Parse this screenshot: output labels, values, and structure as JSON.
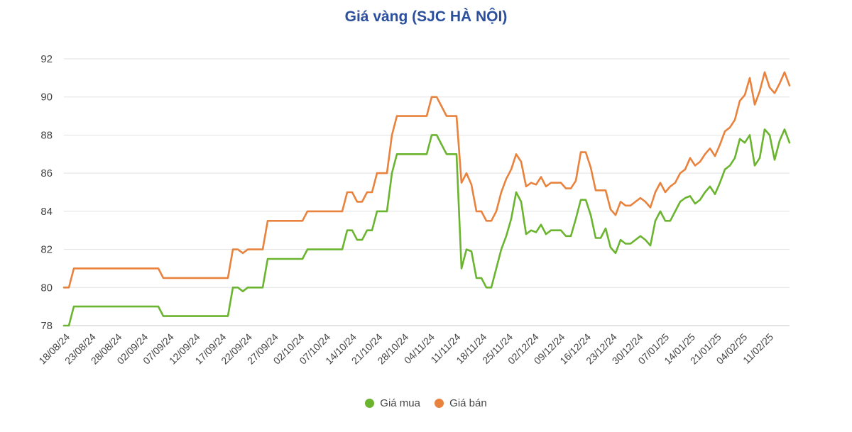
{
  "chart_data": {
    "type": "line",
    "title": "Giá vàng (SJC HÀ NỘI)",
    "xlabel": "",
    "ylabel": "",
    "ylim": [
      78,
      92
    ],
    "y_ticks": [
      "78",
      "80",
      "82",
      "84",
      "86",
      "88",
      "90",
      "92"
    ],
    "x_tick_labels": [
      "18/08/24",
      "23/08/24",
      "28/08/24",
      "02/09/24",
      "07/09/24",
      "12/09/24",
      "17/09/24",
      "22/09/24",
      "27/09/24",
      "02/10/24",
      "07/10/24",
      "14/10/24",
      "21/10/24",
      "28/10/24",
      "04/11/24",
      "11/11/24",
      "18/11/24",
      "25/11/24",
      "02/12/24",
      "09/12/24",
      "16/12/24",
      "23/12/24",
      "30/12/24",
      "07/01/25",
      "14/01/25",
      "21/01/25",
      "04/02/25",
      "11/02/25"
    ],
    "grid": true,
    "legend_position": "bottom",
    "series": [
      {
        "name": "Giá mua",
        "color": "#6ab42f",
        "values": [
          78,
          78,
          79,
          79,
          79,
          79,
          79,
          79,
          79,
          79,
          79,
          79,
          79,
          79,
          79,
          79,
          79,
          79,
          79,
          79,
          78.5,
          78.5,
          78.5,
          78.5,
          78.5,
          78.5,
          78.5,
          78.5,
          78.5,
          78.5,
          78.5,
          78.5,
          78.5,
          78.5,
          80,
          80,
          79.8,
          80,
          80,
          80,
          80,
          81.5,
          81.5,
          81.5,
          81.5,
          81.5,
          81.5,
          81.5,
          81.5,
          82,
          82,
          82,
          82,
          82,
          82,
          82,
          82,
          83,
          83,
          82.5,
          82.5,
          83,
          83,
          84,
          84,
          84,
          86,
          87,
          87,
          87,
          87,
          87,
          87,
          87,
          88,
          88,
          87.5,
          87,
          87,
          87,
          81,
          82,
          81.9,
          80.5,
          80.5,
          80,
          80,
          81,
          82,
          82.7,
          83.6,
          85,
          84.5,
          82.8,
          83,
          82.9,
          83.3,
          82.8,
          83,
          83,
          83,
          82.7,
          82.7,
          83.6,
          84.6,
          84.6,
          83.8,
          82.6,
          82.6,
          83.1,
          82.1,
          81.8,
          82.5,
          82.3,
          82.3,
          82.5,
          82.7,
          82.5,
          82.2,
          83.5,
          84,
          83.5,
          83.5,
          84,
          84.5,
          84.7,
          84.8,
          84.4,
          84.6,
          85,
          85.3,
          84.9,
          85.5,
          86.2,
          86.4,
          86.8,
          87.8,
          87.6,
          88,
          86.4,
          86.8,
          88.3,
          88,
          86.7,
          87.7,
          88.3,
          87.6
        ]
      },
      {
        "name": "Giá bán",
        "color": "#e8823d",
        "values": [
          80,
          80,
          81,
          81,
          81,
          81,
          81,
          81,
          81,
          81,
          81,
          81,
          81,
          81,
          81,
          81,
          81,
          81,
          81,
          81,
          80.5,
          80.5,
          80.5,
          80.5,
          80.5,
          80.5,
          80.5,
          80.5,
          80.5,
          80.5,
          80.5,
          80.5,
          80.5,
          80.5,
          82,
          82,
          81.8,
          82,
          82,
          82,
          82,
          83.5,
          83.5,
          83.5,
          83.5,
          83.5,
          83.5,
          83.5,
          83.5,
          84,
          84,
          84,
          84,
          84,
          84,
          84,
          84,
          85,
          85,
          84.5,
          84.5,
          85,
          85,
          86,
          86,
          86,
          88,
          89,
          89,
          89,
          89,
          89,
          89,
          89,
          90,
          90,
          89.5,
          89,
          89,
          89,
          85.5,
          86,
          85.4,
          84,
          84,
          83.5,
          83.5,
          84,
          85,
          85.7,
          86.2,
          87,
          86.6,
          85.3,
          85.5,
          85.4,
          85.8,
          85.3,
          85.5,
          85.5,
          85.5,
          85.2,
          85.2,
          85.6,
          87.1,
          87.1,
          86.3,
          85.1,
          85.1,
          85.1,
          84.1,
          83.8,
          84.5,
          84.3,
          84.3,
          84.5,
          84.7,
          84.5,
          84.2,
          85,
          85.5,
          85,
          85.3,
          85.5,
          86,
          86.2,
          86.8,
          86.4,
          86.6,
          87,
          87.3,
          86.9,
          87.5,
          88.2,
          88.4,
          88.8,
          89.8,
          90.1,
          91,
          89.6,
          90.3,
          91.3,
          90.5,
          90.2,
          90.7,
          91.3,
          90.6
        ]
      }
    ]
  }
}
